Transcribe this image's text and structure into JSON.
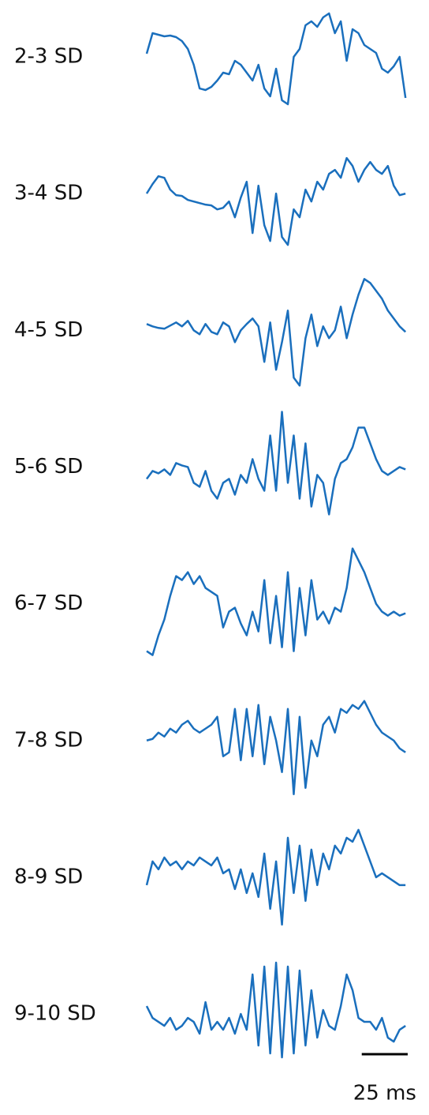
{
  "chart_data": {
    "type": "line",
    "color": "#1a6fbd",
    "x": [
      0,
      3.2,
      6.4,
      9.6,
      12.8,
      16,
      19.2,
      22.4,
      25.6,
      28.8,
      32,
      35.2,
      38.4,
      41.6,
      44.8,
      48,
      51.2,
      54.4,
      57.6,
      60.8,
      64,
      67.2,
      70.4,
      73.6,
      76.8,
      80,
      83.2,
      86.4,
      89.6,
      92.8,
      96,
      99.2,
      102.4,
      105.6,
      108.8,
      112,
      115.2,
      118.4,
      121.6,
      124.8,
      128,
      131.2,
      134.4,
      137.6,
      140.8
    ],
    "xlim": [
      0,
      142
    ],
    "ylim": [
      -87,
      87
    ],
    "series": [
      {
        "name": "2-3 SD",
        "values": [
          4,
          30,
          28,
          26,
          27,
          25,
          20,
          10,
          -10,
          -40,
          -42,
          -38,
          -30,
          -20,
          -22,
          -5,
          -10,
          -20,
          -30,
          -10,
          -40,
          -50,
          -15,
          -55,
          -60,
          0,
          10,
          40,
          45,
          38,
          50,
          55,
          30,
          45,
          -5,
          35,
          30,
          15,
          10,
          5,
          -15,
          -20,
          -12,
          0,
          -52
        ]
      },
      {
        "name": "3-4 SD",
        "values": [
          0,
          12,
          22,
          20,
          5,
          -2,
          -3,
          -8,
          -10,
          -12,
          -14,
          -15,
          -20,
          -18,
          -10,
          -30,
          -5,
          15,
          -50,
          10,
          -40,
          -60,
          0,
          -55,
          -65,
          -20,
          -30,
          5,
          -10,
          15,
          5,
          25,
          30,
          20,
          45,
          35,
          15,
          30,
          40,
          30,
          25,
          35,
          10,
          -2,
          0
        ]
      },
      {
        "name": "4-5 SD",
        "values": [
          8,
          5,
          3,
          2,
          6,
          10,
          5,
          12,
          0,
          -5,
          8,
          -2,
          -5,
          10,
          5,
          -15,
          0,
          8,
          15,
          5,
          -40,
          10,
          -50,
          -15,
          25,
          -60,
          -70,
          -10,
          20,
          -20,
          5,
          -10,
          0,
          30,
          -10,
          20,
          45,
          65,
          60,
          50,
          40,
          25,
          15,
          5,
          -2
        ]
      },
      {
        "name": "5-6 SD",
        "values": [
          -15,
          -5,
          -8,
          -3,
          -10,
          5,
          2,
          0,
          -20,
          -25,
          -5,
          -30,
          -40,
          -20,
          -15,
          -35,
          -10,
          -20,
          10,
          -15,
          -30,
          40,
          -30,
          70,
          -20,
          40,
          -40,
          30,
          -50,
          -10,
          -20,
          -60,
          -15,
          5,
          10,
          25,
          50,
          50,
          30,
          10,
          -5,
          -10,
          -5,
          0,
          -3
        ]
      },
      {
        "name": "6-7 SD",
        "values": [
          -60,
          -65,
          -40,
          -20,
          10,
          35,
          30,
          40,
          25,
          35,
          20,
          15,
          10,
          -30,
          -10,
          -5,
          -25,
          -40,
          -10,
          -35,
          30,
          -50,
          10,
          -55,
          40,
          -60,
          20,
          -40,
          30,
          -20,
          -10,
          -25,
          -5,
          -10,
          20,
          70,
          55,
          40,
          20,
          0,
          -10,
          -15,
          -10,
          -15,
          -12
        ]
      },
      {
        "name": "7-8 SD",
        "values": [
          0,
          2,
          10,
          5,
          15,
          10,
          20,
          25,
          15,
          10,
          15,
          20,
          30,
          -20,
          -15,
          40,
          -25,
          40,
          -20,
          45,
          -30,
          30,
          0,
          -40,
          40,
          -68,
          30,
          -60,
          0,
          -20,
          20,
          30,
          10,
          40,
          35,
          45,
          40,
          50,
          35,
          20,
          10,
          5,
          0,
          -10,
          -15
        ]
      },
      {
        "name": "8-9 SD",
        "values": [
          -10,
          20,
          10,
          25,
          15,
          20,
          10,
          20,
          15,
          25,
          20,
          15,
          25,
          5,
          10,
          -15,
          10,
          -20,
          5,
          -25,
          30,
          -40,
          20,
          -60,
          50,
          -20,
          40,
          -30,
          35,
          -10,
          30,
          10,
          40,
          30,
          50,
          45,
          60,
          40,
          20,
          0,
          5,
          0,
          -5,
          -10,
          -10
        ]
      },
      {
        "name": "9-10 SD",
        "values": [
          10,
          -5,
          -10,
          -15,
          -5,
          -20,
          -15,
          -5,
          -10,
          -25,
          15,
          -20,
          -10,
          -20,
          -5,
          -25,
          0,
          -20,
          50,
          -40,
          60,
          -50,
          65,
          -55,
          60,
          -50,
          55,
          -40,
          30,
          -30,
          5,
          -15,
          -20,
          10,
          50,
          30,
          -5,
          -10,
          -10,
          -20,
          -5,
          -30,
          -35,
          -20,
          -15
        ]
      }
    ],
    "scale_bar": {
      "value": 25,
      "label": "25 ms"
    }
  }
}
